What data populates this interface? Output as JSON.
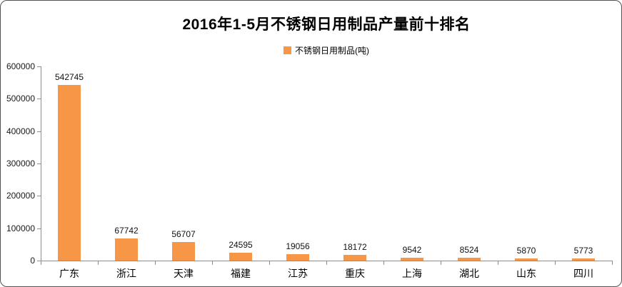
{
  "chart_data": {
    "type": "bar",
    "title": "2016年1-5月不锈钢日用制品产量前十排名",
    "legend": "不锈钢日用制品(吨)",
    "legend_position": "top",
    "categories": [
      "广东",
      "浙江",
      "天津",
      "福建",
      "江苏",
      "重庆",
      "上海",
      "湖北",
      "山东",
      "四川"
    ],
    "values": [
      542745,
      67742,
      56707,
      24595,
      19056,
      18172,
      9542,
      8524,
      5870,
      5773
    ],
    "xlabel": "",
    "ylabel": "",
    "ylim": [
      0,
      600000
    ],
    "yticks": [
      0,
      100000,
      200000,
      300000,
      400000,
      500000,
      600000
    ],
    "grid": false,
    "value_labels": true,
    "bar_color": "#F79646",
    "axis_color": "#8E8E8E"
  }
}
